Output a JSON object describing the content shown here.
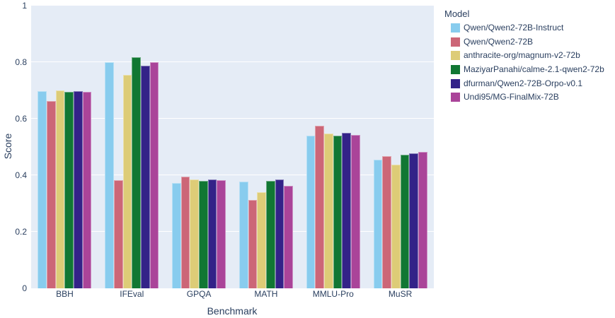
{
  "styles": {
    "paper_bg": "#ffffff",
    "plot_bg": "#E5ECF6",
    "grid_color": "#ffffff",
    "text_color": "#2a3f5f"
  },
  "chart_data": {
    "type": "bar",
    "title": "",
    "xlabel": "Benchmark",
    "ylabel": "Score",
    "legend_title": "Model",
    "legend_position": "right",
    "grid": true,
    "ylim": [
      0,
      1
    ],
    "yticks": [
      0,
      0.2,
      0.4,
      0.6,
      0.8,
      1
    ],
    "ytick_labels": [
      "0",
      "0.2",
      "0.4",
      "0.6",
      "0.8",
      "1"
    ],
    "categories": [
      "BBH",
      "IFEval",
      "GPQA",
      "MATH",
      "MMLU-Pro",
      "MuSR"
    ],
    "series": [
      {
        "name": "Qwen/Qwen2-72B-Instruct",
        "color": "#88CCEE",
        "values": [
          0.697,
          0.799,
          0.372,
          0.377,
          0.541,
          0.455
        ]
      },
      {
        "name": "Qwen/Qwen2-72B",
        "color": "#CC6677",
        "values": [
          0.662,
          0.383,
          0.395,
          0.313,
          0.574,
          0.468
        ]
      },
      {
        "name": "anthracite-org/magnum-v2-72b",
        "color": "#DDCC77",
        "values": [
          0.701,
          0.756,
          0.386,
          0.34,
          0.547,
          0.437
        ]
      },
      {
        "name": "MaziyarPanahi/calme-2.1-qwen2-72b",
        "color": "#117733",
        "values": [
          0.695,
          0.817,
          0.38,
          0.381,
          0.541,
          0.472
        ]
      },
      {
        "name": "dfurman/Qwen2-72B-Orpo-v0.1",
        "color": "#332288",
        "values": [
          0.697,
          0.788,
          0.385,
          0.384,
          0.549,
          0.478
        ]
      },
      {
        "name": "Undi95/MG-FinalMix-72B",
        "color": "#AA4499",
        "values": [
          0.696,
          0.8,
          0.383,
          0.362,
          0.543,
          0.483
        ]
      }
    ]
  }
}
